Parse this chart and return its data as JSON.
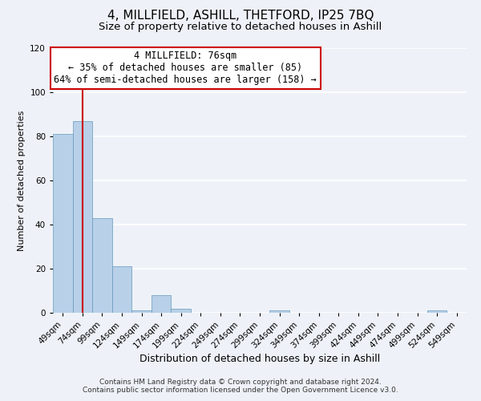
{
  "title": "4, MILLFIELD, ASHILL, THETFORD, IP25 7BQ",
  "subtitle": "Size of property relative to detached houses in Ashill",
  "xlabel": "Distribution of detached houses by size in Ashill",
  "ylabel": "Number of detached properties",
  "bar_color": "#b8d0e8",
  "bar_edgecolor": "#6699bb",
  "background_color": "#eef2f8",
  "grid_color": "#ffffff",
  "bins": [
    "49sqm",
    "74sqm",
    "99sqm",
    "124sqm",
    "149sqm",
    "174sqm",
    "199sqm",
    "224sqm",
    "249sqm",
    "274sqm",
    "299sqm",
    "324sqm",
    "349sqm",
    "374sqm",
    "399sqm",
    "424sqm",
    "449sqm",
    "474sqm",
    "499sqm",
    "524sqm",
    "549sqm"
  ],
  "values": [
    81,
    87,
    43,
    21,
    1,
    8,
    2,
    0,
    0,
    0,
    0,
    1,
    0,
    0,
    0,
    0,
    0,
    0,
    0,
    1,
    0
  ],
  "ylim": [
    0,
    120
  ],
  "yticks": [
    0,
    20,
    40,
    60,
    80,
    100,
    120
  ],
  "vline_x": 1,
  "vline_color": "#cc0000",
  "annotation_title": "4 MILLFIELD: 76sqm",
  "annotation_line1": "← 35% of detached houses are smaller (85)",
  "annotation_line2": "64% of semi-detached houses are larger (158) →",
  "annotation_box_facecolor": "#ffffff",
  "annotation_box_edgecolor": "#cc0000",
  "footer1": "Contains HM Land Registry data © Crown copyright and database right 2024.",
  "footer2": "Contains public sector information licensed under the Open Government Licence v3.0.",
  "title_fontsize": 11,
  "subtitle_fontsize": 9.5,
  "xlabel_fontsize": 9,
  "ylabel_fontsize": 8,
  "tick_fontsize": 7.5,
  "annotation_fontsize": 8.5,
  "footer_fontsize": 6.5
}
